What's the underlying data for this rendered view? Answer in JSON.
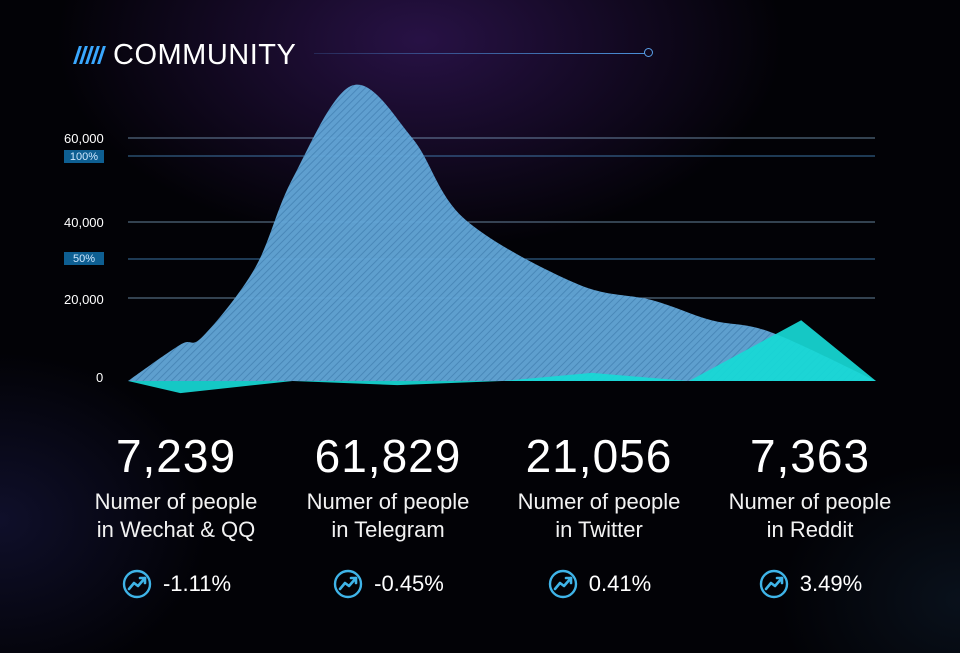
{
  "header": {
    "title": "COMMUNITY"
  },
  "chart_data": {
    "type": "area",
    "y_ticks": [
      "60,000",
      "40,000",
      "20,000",
      "0"
    ],
    "pct_ticks": [
      "100%",
      "50%"
    ],
    "grid": true,
    "series": [
      {
        "color": "#5fa6d8",
        "points": [
          [
            0,
            0
          ],
          [
            0.07,
            9000
          ],
          [
            0.1,
            11000
          ],
          [
            0.17,
            28000
          ],
          [
            0.22,
            50000
          ],
          [
            0.3,
            73000
          ],
          [
            0.38,
            60000
          ],
          [
            0.45,
            40000
          ],
          [
            0.6,
            24000
          ],
          [
            0.7,
            20000
          ],
          [
            0.78,
            15000
          ],
          [
            0.86,
            12000
          ],
          [
            1,
            0
          ]
        ]
      },
      {
        "color": "#17d9d6",
        "points": [
          [
            0,
            0
          ],
          [
            0.07,
            -3000
          ],
          [
            0.22,
            0
          ],
          [
            0.36,
            -1000
          ],
          [
            0.5,
            0
          ],
          [
            0.62,
            2000
          ],
          [
            0.75,
            0
          ],
          [
            0.9,
            15000
          ],
          [
            1,
            0
          ]
        ]
      }
    ]
  },
  "stats": [
    {
      "value": "7,239",
      "label_line1": "Numer of people",
      "label_line2": "in Wechat & QQ",
      "change": "-1.11%"
    },
    {
      "value": "61,829",
      "label_line1": "Numer of people",
      "label_line2": "in Telegram",
      "change": "-0.45%"
    },
    {
      "value": "21,056",
      "label_line1": "Numer of people",
      "label_line2": "in Twitter",
      "change": "0.41%"
    },
    {
      "value": "7,363",
      "label_line1": "Numer of people",
      "label_line2": "in Reddit",
      "change": "3.49%"
    }
  ],
  "icons": {
    "trend": "trend-up-icon"
  }
}
